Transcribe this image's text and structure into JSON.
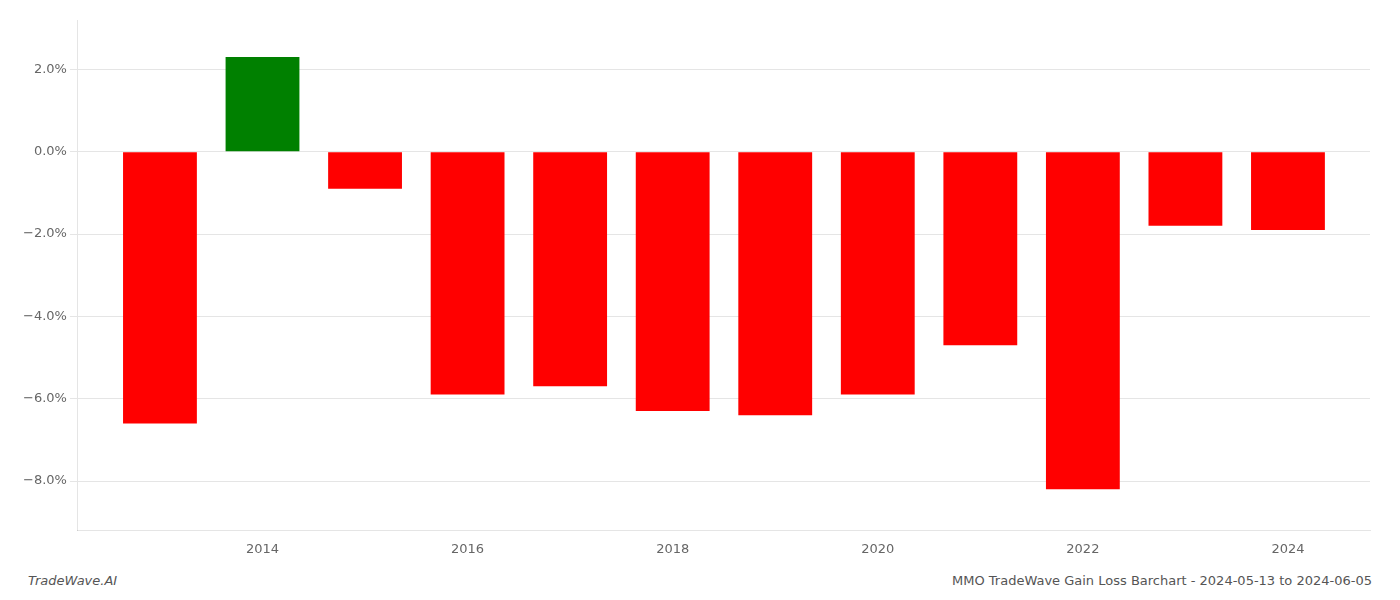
{
  "chart_data": {
    "type": "bar",
    "x": [
      2013,
      2014,
      2015,
      2016,
      2017,
      2018,
      2019,
      2020,
      2021,
      2022,
      2023,
      2024
    ],
    "values": [
      -6.6,
      2.3,
      -0.9,
      -5.9,
      -5.7,
      -6.3,
      -6.4,
      -5.9,
      -4.7,
      -8.2,
      -1.8,
      -1.9
    ],
    "colors": [
      "#ff0000",
      "#008000",
      "#ff0000",
      "#ff0000",
      "#ff0000",
      "#ff0000",
      "#ff0000",
      "#ff0000",
      "#ff0000",
      "#ff0000",
      "#ff0000",
      "#ff0000"
    ],
    "xlim": [
      2012.2,
      2024.8
    ],
    "xticks": [
      2014,
      2016,
      2018,
      2020,
      2022,
      2024
    ],
    "ylim": [
      -9.2,
      3.2
    ],
    "yticks": [
      {
        "value": 2.0,
        "label": "2.0%"
      },
      {
        "value": 0.0,
        "label": "0.0%"
      },
      {
        "value": -2.0,
        "label": "−2.0%"
      },
      {
        "value": -4.0,
        "label": "−4.0%"
      },
      {
        "value": -6.0,
        "label": "−6.0%"
      },
      {
        "value": -8.0,
        "label": "−8.0%"
      }
    ],
    "grid": true,
    "annotations": [
      "TradeWave.AI",
      "MMO TradeWave Gain Loss Barchart - 2024-05-13 to 2024-06-05"
    ]
  }
}
